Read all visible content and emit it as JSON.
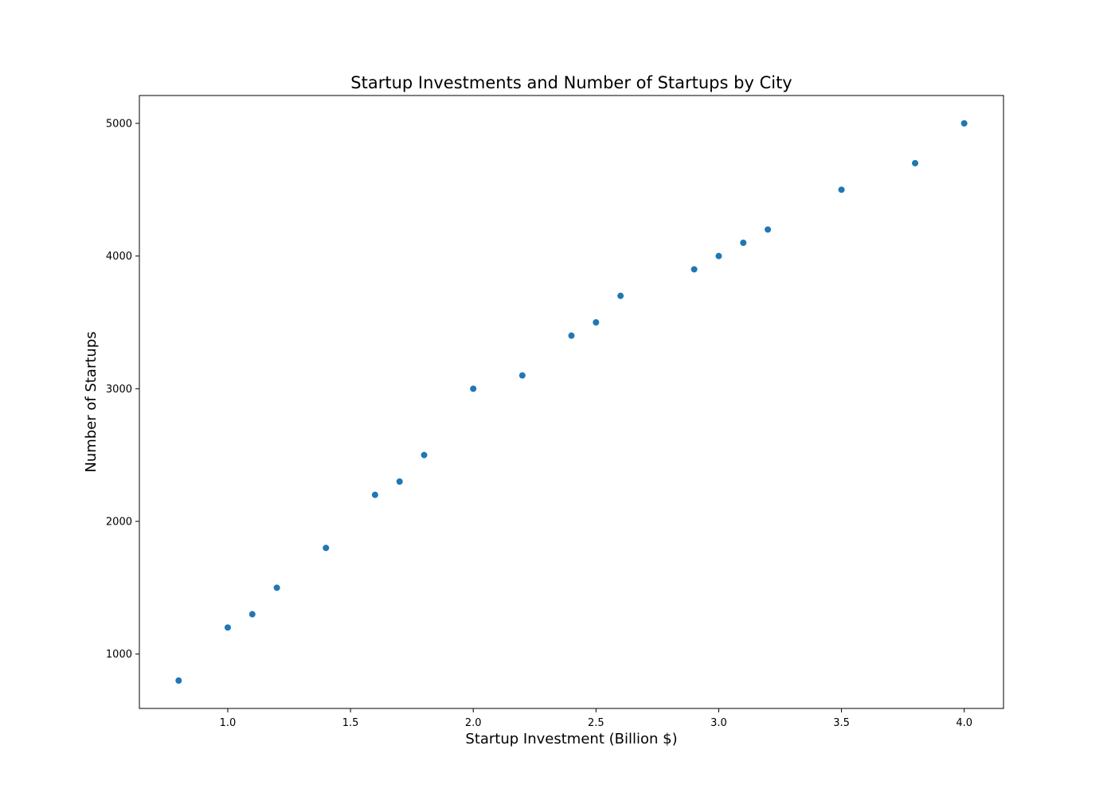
{
  "chart_data": {
    "type": "scatter",
    "title": "Startup Investments and Number of Startups by City",
    "xlabel": "Startup Investment (Billion $)",
    "ylabel": "Number of Startups",
    "xlim": [
      0.64,
      4.16
    ],
    "ylim": [
      590,
      5210
    ],
    "xticks": [
      "1.0",
      "1.5",
      "2.0",
      "2.5",
      "3.0",
      "3.5",
      "4.0"
    ],
    "yticks": [
      "1000",
      "2000",
      "3000",
      "4000",
      "5000"
    ],
    "grid": false,
    "legend": "none",
    "marker_color": "#1f77b4",
    "series": [
      {
        "x": [
          0.8,
          1.0,
          1.1,
          1.2,
          1.4,
          1.6,
          1.7,
          1.8,
          2.0,
          2.2,
          2.4,
          2.5,
          2.6,
          2.9,
          3.0,
          3.1,
          3.2,
          3.5,
          3.8,
          4.0
        ],
        "y": [
          800,
          1200,
          1300,
          1500,
          1800,
          2200,
          2300,
          2500,
          3000,
          3100,
          3400,
          3500,
          3700,
          3900,
          4000,
          4100,
          4200,
          4500,
          4700,
          5000
        ]
      }
    ]
  }
}
